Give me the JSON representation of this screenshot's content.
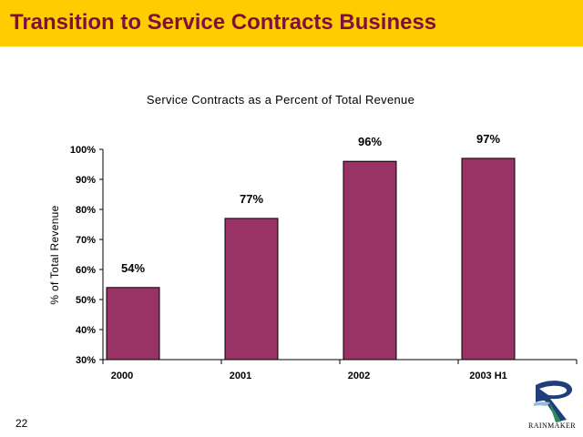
{
  "slide": {
    "title": "Transition to Service Contracts Business",
    "page_number": "22",
    "logo_text": "RAINMAKER",
    "colors": {
      "title_bar": "#ffcc00",
      "title_text": "#7f0f3d",
      "bar": "#993366"
    }
  },
  "chart_data": {
    "type": "bar",
    "title": "Service Contracts as a Percent of Total Revenue",
    "xlabel": "",
    "ylabel": "% of Total Revenue",
    "categories": [
      "2000",
      "2001",
      "2002",
      "2003 H1"
    ],
    "values": [
      54,
      77,
      96,
      97
    ],
    "data_labels": [
      "54%",
      "77%",
      "96%",
      "97%"
    ],
    "ylim": [
      30,
      100
    ],
    "yticks": [
      30,
      40,
      50,
      60,
      70,
      80,
      90,
      100
    ],
    "ytick_labels": [
      "30%",
      "40%",
      "50%",
      "60%",
      "70%",
      "80%",
      "90%",
      "100%"
    ],
    "grid": false,
    "legend": "none"
  }
}
